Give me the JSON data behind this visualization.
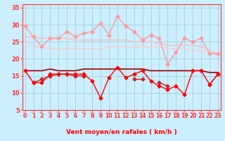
{
  "x": [
    0,
    1,
    2,
    3,
    4,
    5,
    6,
    7,
    8,
    9,
    10,
    11,
    12,
    13,
    14,
    15,
    16,
    17,
    18,
    19,
    20,
    21,
    22,
    23
  ],
  "series": [
    {
      "label": "rafales_jagged",
      "y": [
        29.5,
        26.5,
        23.5,
        26.0,
        26.0,
        28.0,
        26.5,
        27.5,
        28.0,
        30.5,
        27.0,
        32.5,
        29.5,
        28.0,
        25.5,
        27.0,
        26.0,
        18.5,
        22.0,
        26.0,
        25.0,
        26.0,
        21.5,
        21.5
      ],
      "color": "#ff9999",
      "lw": 1.0,
      "marker": "D",
      "ms": 2.5,
      "zorder": 4
    },
    {
      "label": "rafales_smooth_upper",
      "y": [
        26.5,
        26.5,
        26.0,
        26.0,
        26.0,
        26.0,
        25.5,
        25.5,
        25.5,
        25.5,
        25.5,
        25.5,
        25.5,
        25.0,
        25.0,
        25.0,
        24.5,
        24.0,
        24.0,
        24.0,
        24.0,
        23.5,
        22.5,
        21.5
      ],
      "color": "#ffbbbb",
      "lw": 1.0,
      "marker": null,
      "ms": 0,
      "zorder": 2
    },
    {
      "label": "rafales_smooth_lower",
      "y": [
        25.0,
        24.0,
        23.5,
        23.0,
        23.0,
        23.0,
        23.0,
        23.0,
        23.0,
        23.0,
        23.5,
        23.5,
        23.5,
        23.5,
        23.5,
        23.5,
        23.5,
        23.0,
        23.0,
        23.0,
        22.5,
        22.5,
        21.5,
        21.5
      ],
      "color": "#ffcccc",
      "lw": 1.0,
      "marker": null,
      "ms": 0,
      "zorder": 2
    },
    {
      "label": "moyen_flat_dark",
      "y": [
        16.5,
        16.5,
        16.5,
        17.0,
        16.5,
        16.5,
        16.5,
        17.0,
        17.0,
        17.0,
        17.0,
        17.0,
        17.0,
        17.0,
        17.0,
        16.5,
        16.5,
        16.5,
        16.5,
        16.5,
        16.5,
        16.5,
        16.0,
        16.0
      ],
      "color": "#990000",
      "lw": 1.2,
      "marker": null,
      "ms": 0,
      "zorder": 3
    },
    {
      "label": "moyen_jagged1",
      "y": [
        16.5,
        13.0,
        13.0,
        15.5,
        15.5,
        15.5,
        15.5,
        15.5,
        13.5,
        8.5,
        14.5,
        17.5,
        14.5,
        15.5,
        16.5,
        13.5,
        12.0,
        11.0,
        12.0,
        9.5,
        16.5,
        16.5,
        12.5,
        15.5
      ],
      "color": "#ff0000",
      "lw": 1.0,
      "marker": "D",
      "ms": 2.5,
      "zorder": 5
    },
    {
      "label": "moyen_jagged2",
      "y": [
        null,
        13.0,
        14.0,
        15.0,
        15.5,
        15.5,
        15.0,
        15.0,
        null,
        null,
        null,
        null,
        null,
        14.0,
        14.0,
        null,
        13.0,
        12.0,
        null,
        null,
        null,
        null,
        12.5,
        15.5
      ],
      "color": "#cc2222",
      "lw": 1.0,
      "marker": "D",
      "ms": 2.5,
      "zorder": 4
    }
  ],
  "xlim": [
    -0.3,
    23.3
  ],
  "ylim": [
    5,
    36
  ],
  "yticks": [
    5,
    10,
    15,
    20,
    25,
    30,
    35
  ],
  "xticks": [
    0,
    1,
    2,
    3,
    4,
    5,
    6,
    7,
    8,
    9,
    10,
    11,
    12,
    13,
    14,
    15,
    16,
    17,
    18,
    19,
    20,
    21,
    22,
    23
  ],
  "xlabel": "Vent moyen/en rafales ( km/h )",
  "bg_color": "#cceeff",
  "grid_color": "#99cccc",
  "tick_color": "#ff3333",
  "label_color": "#ff0000",
  "arrow_color": "#ff9999",
  "spine_color": "#ff3333"
}
